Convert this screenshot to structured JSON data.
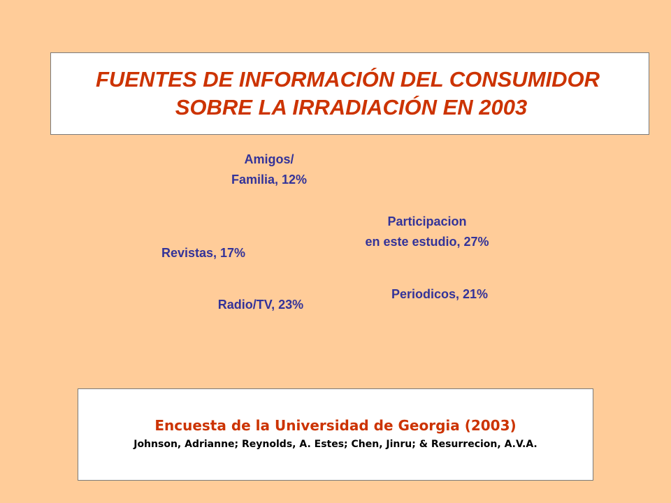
{
  "title": {
    "line1": "FUENTES DE INFORMACIÓN DEL CONSUMIDOR",
    "line2": "SOBRE LA IRRADIACIÓN EN 2003"
  },
  "chart_data": {
    "type": "pie",
    "title": "FUENTES DE INFORMACIÓN DEL CONSUMIDOR SOBRE LA IRRADIACIÓN EN 2003",
    "slices": [
      {
        "id": "amigos",
        "label_lines": [
          "Amigos/",
          "Familia, 12%"
        ],
        "value": 12
      },
      {
        "id": "participacion",
        "label_lines": [
          "Participacion",
          "en este estudio, 27%"
        ],
        "value": 27
      },
      {
        "id": "periodicos",
        "label_lines": [
          "Periodicos, 21%"
        ],
        "value": 21
      },
      {
        "id": "radio-tv",
        "label_lines": [
          "Radio/TV, 23%"
        ],
        "value": 23
      },
      {
        "id": "revistas",
        "label_lines": [
          "Revistas, 17%"
        ],
        "value": 17
      }
    ],
    "unit": "%"
  },
  "source": {
    "title": "Encuesta de la Universidad de Georgia (2003)",
    "authors": "Johnson, Adrianne; Reynolds, A. Estes; Chen, Jinru; & Resurrecion, A.V.A."
  },
  "colors": {
    "background": "#FFCC99",
    "title": "#CC3300",
    "labels": "#333399",
    "source_title": "#CC3300",
    "source_authors": "#000000"
  }
}
